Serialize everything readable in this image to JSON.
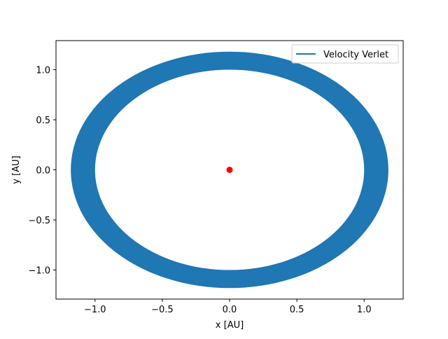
{
  "chart_data": {
    "type": "line",
    "title": "",
    "xlabel": "x [AU]",
    "ylabel": "y [AU]",
    "xlim": [
      -1.29,
      1.29
    ],
    "ylim": [
      -1.29,
      1.29
    ],
    "x_ticks": [
      -1.0,
      -0.5,
      0.0,
      0.5,
      1.0
    ],
    "y_ticks": [
      -1.0,
      -0.5,
      0.0,
      0.5,
      1.0
    ],
    "x_tick_labels": [
      "−1.0",
      "−0.5",
      "0.0",
      "0.5",
      "1.0"
    ],
    "y_tick_labels": [
      "−1.0",
      "−0.5",
      "0.0",
      "0.5",
      "1.0"
    ],
    "grid": false,
    "legend_position": "upper right",
    "series": [
      {
        "name": "Velocity Verlet",
        "color": "#1f77b4",
        "kind": "orbit-band",
        "inner_radius": 1.0,
        "outer_radius": 1.18,
        "center": [
          0.0,
          0.0
        ]
      }
    ],
    "markers": [
      {
        "x": 0.0,
        "y": 0.0,
        "color": "#ff0000"
      }
    ]
  }
}
